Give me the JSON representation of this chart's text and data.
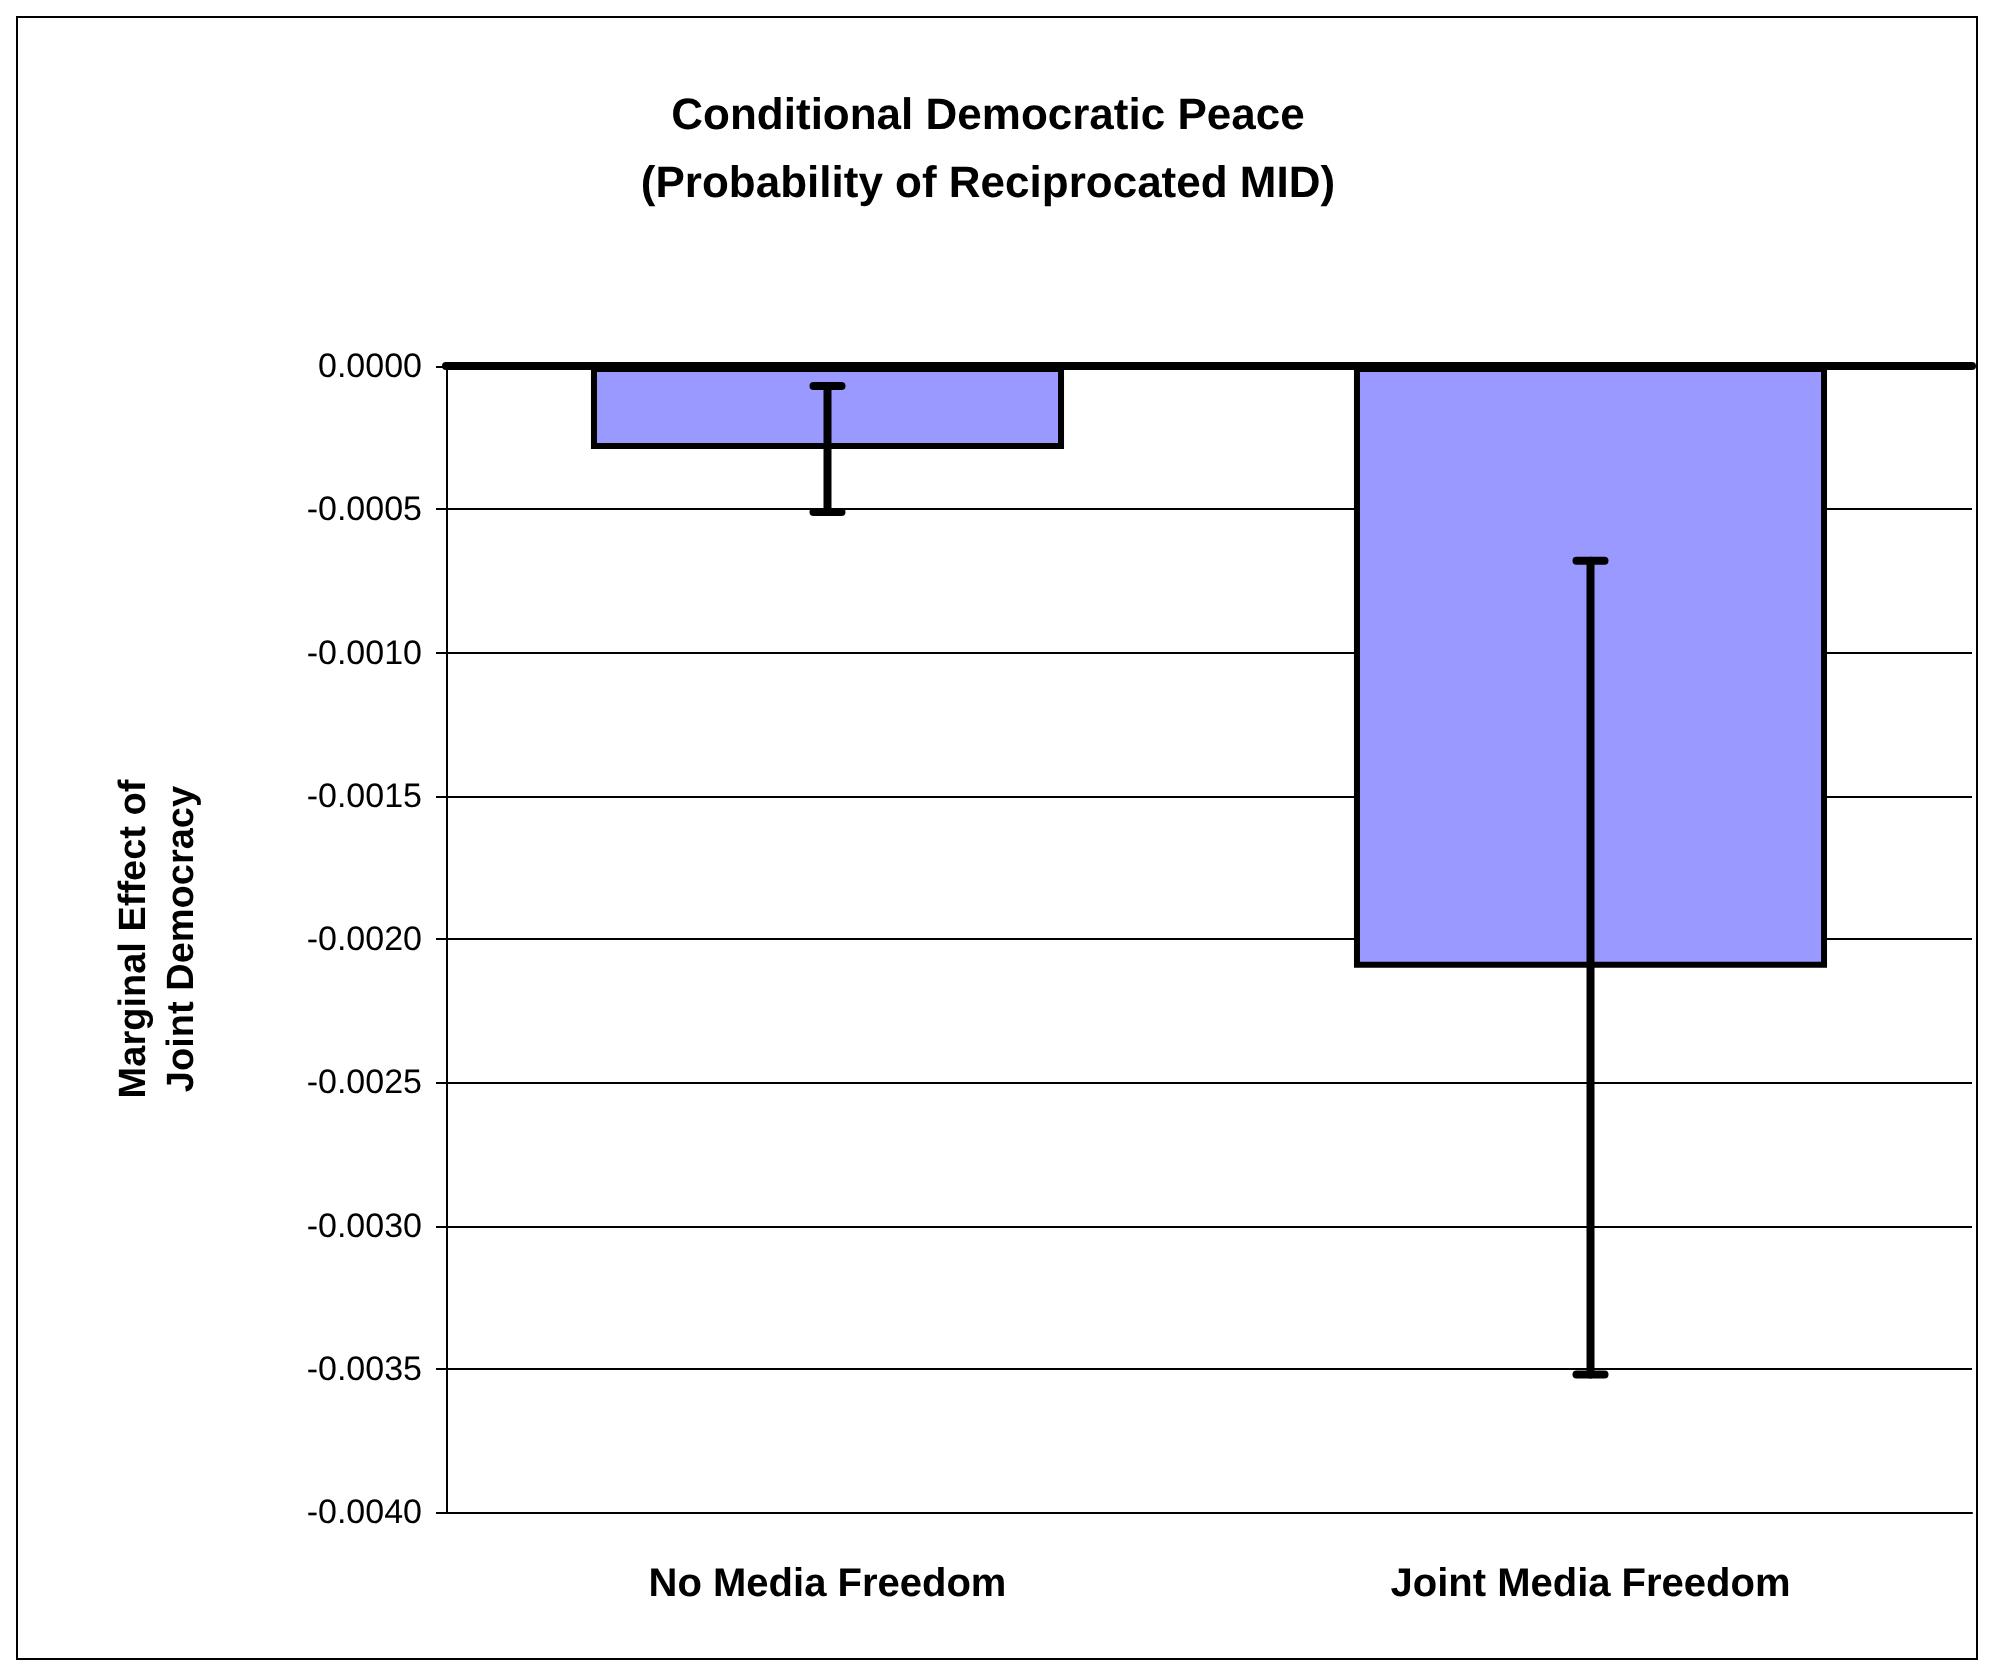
{
  "chart_data": {
    "type": "bar",
    "title": "Conditional Democratic Peace\n(Probability of Reciprocated MID)",
    "ylabel": "Marginal Effect of\nJoint Democracy",
    "categories": [
      "No Media Freedom",
      "Joint Media Freedom"
    ],
    "values": [
      -0.00029,
      -0.0021
    ],
    "errors": [
      0.00022,
      0.00142
    ],
    "color": "#9999ff",
    "ylim": [
      -0.004,
      0
    ],
    "yticks": [
      {
        "value": 0,
        "label": "0.0000"
      },
      {
        "value": -0.0005,
        "label": "-0.0005"
      },
      {
        "value": -0.001,
        "label": "-0.0010"
      },
      {
        "value": -0.0015,
        "label": "-0.0015"
      },
      {
        "value": -0.002,
        "label": "-0.0020"
      },
      {
        "value": -0.0025,
        "label": "-0.0025"
      },
      {
        "value": -0.003,
        "label": "-0.0030"
      },
      {
        "value": -0.0035,
        "label": "-0.0035"
      },
      {
        "value": -0.004,
        "label": "-0.0040"
      }
    ],
    "grid": "y"
  }
}
